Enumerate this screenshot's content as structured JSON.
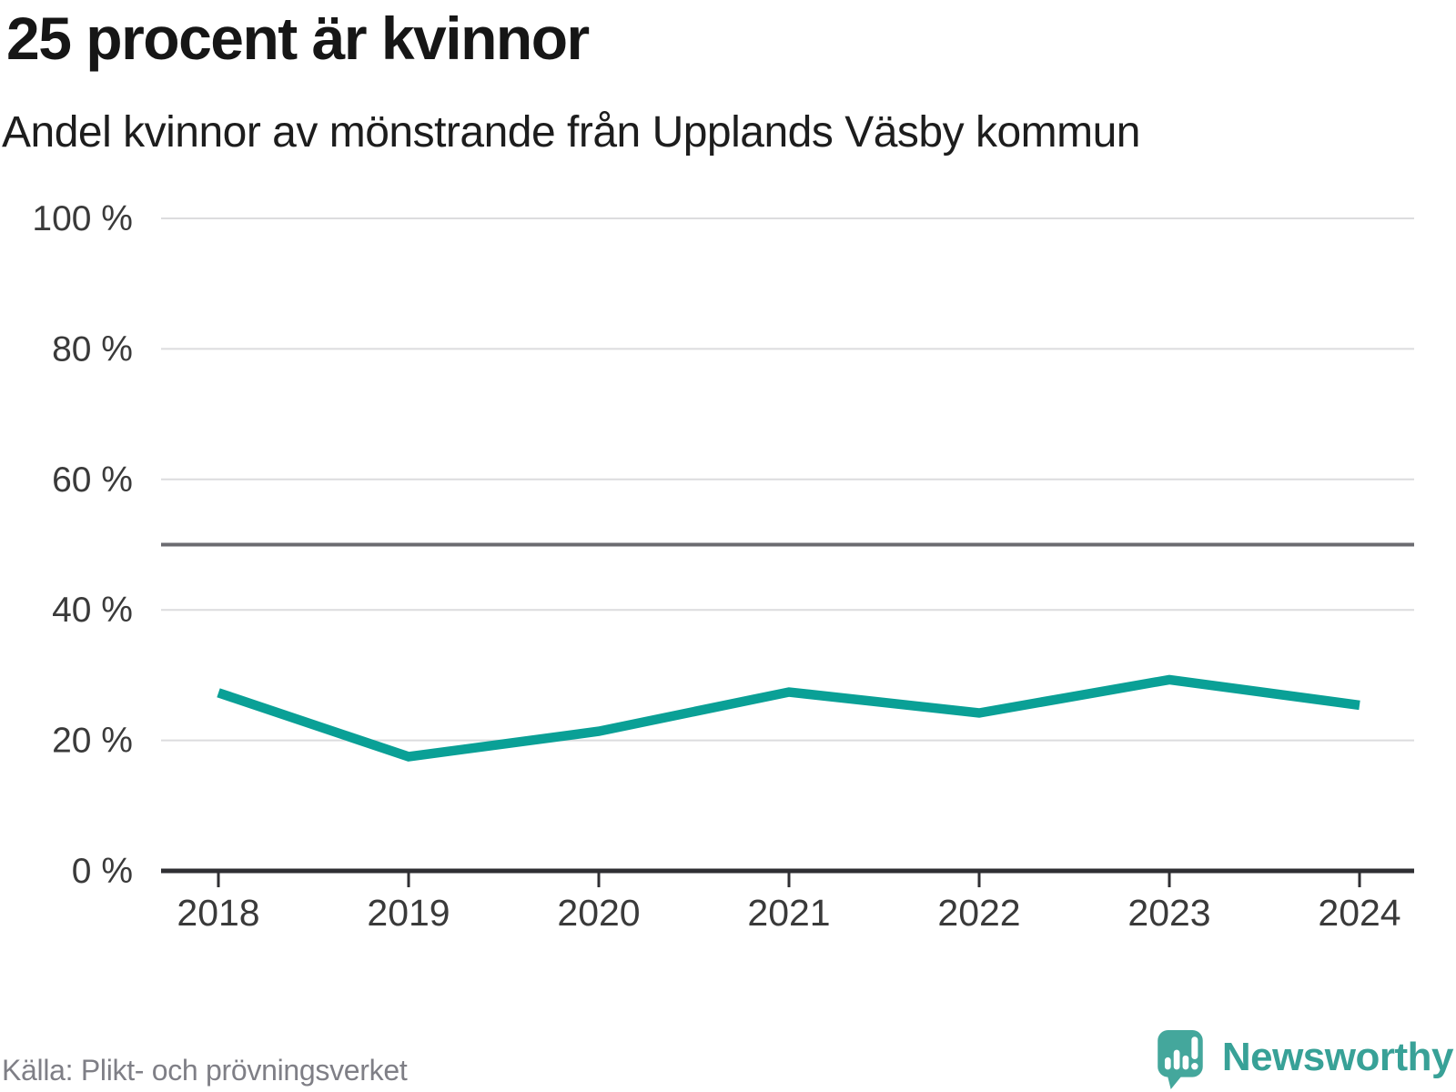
{
  "header": {
    "title": "25 procent är kvinnor",
    "subtitle": "Andel kvinnor av mönstrande från Upplands Väsby kommun"
  },
  "chart_data": {
    "type": "line",
    "title": "25 procent är kvinnor",
    "subtitle": "Andel kvinnor av mönstrande från Upplands Väsby kommun",
    "categories": [
      "2018",
      "2019",
      "2020",
      "2021",
      "2022",
      "2023",
      "2024"
    ],
    "series": [
      {
        "name": "Andel kvinnor av mönstrande",
        "values": [
          27.3,
          17.5,
          21.4,
          27.4,
          24.2,
          29.3,
          25.4
        ],
        "color": "#0aa096"
      }
    ],
    "xlabel": "",
    "ylabel": "",
    "unit": "%",
    "ylim": [
      0,
      100
    ],
    "y_ticks": [
      {
        "value": 0,
        "label": "0 %"
      },
      {
        "value": 20,
        "label": "20 %"
      },
      {
        "value": 40,
        "label": "40 %"
      },
      {
        "value": 60,
        "label": "60 %"
      },
      {
        "value": 80,
        "label": "80 %"
      },
      {
        "value": 100,
        "label": "100 %"
      }
    ],
    "reference_line": {
      "value": 50
    },
    "grid": "horizontal",
    "legend": "none"
  },
  "footer": {
    "source": "Källa: Plikt- och prövningsverket",
    "brand": "Newsworthy"
  },
  "colors": {
    "line": "#0aa096",
    "grid": "#dcdcde",
    "axis": "#2f2f33",
    "reference_line": "#6b6b70",
    "tick_text": "#3a3a3a",
    "muted_text": "#7f7f86",
    "brand_teal": "#38a197",
    "logo_bubble": "#44a79c"
  },
  "icons": {
    "logo": "newsworthy-speech-bubble-barchart-icon"
  }
}
